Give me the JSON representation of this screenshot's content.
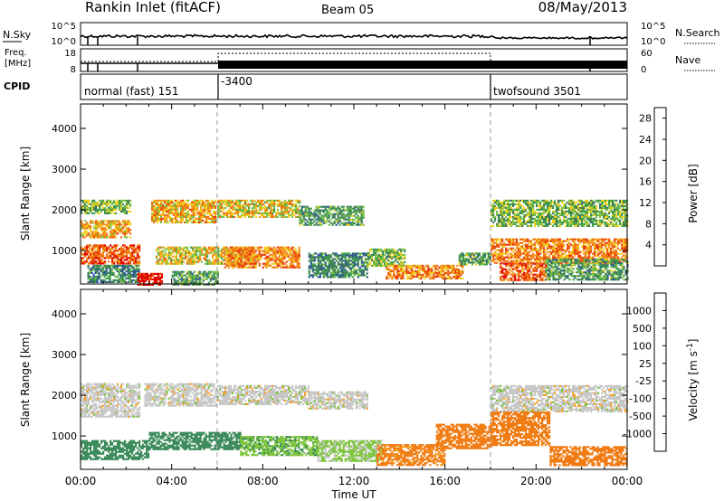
{
  "header": {
    "station": "Rankin Inlet (fitACF)",
    "beam": "Beam 05",
    "date": "08/May/2013"
  },
  "nsky_panel": {
    "left_label": "N.Sky",
    "right_label": "N.Search",
    "left_ticks": [
      "10^5",
      "10^0"
    ],
    "right_ticks": [
      "10^5",
      "10^0"
    ]
  },
  "freq_panel": {
    "left_label_1": "Freq.",
    "left_label_2": "[MHz]",
    "right_label": "Nave",
    "left_ticks": [
      "18",
      "8"
    ],
    "right_ticks": [
      "60",
      "0"
    ]
  },
  "cpid_panel": {
    "label": "CPID",
    "modes": [
      {
        "name": "normal (fast) 151",
        "start_hour": 0
      },
      {
        "name": "-3400",
        "start_hour": 6.0
      },
      {
        "name": "twofsound 3501",
        "start_hour": 18.0
      }
    ]
  },
  "chart_data": [
    {
      "type": "heatmap",
      "title": "",
      "xlabel": "Time UT",
      "ylabel": "Slant Range [km]",
      "x_ticks": [
        "00:00",
        "04:00",
        "08:00",
        "12:00",
        "16:00",
        "20:00",
        "00:00"
      ],
      "xlim_hours": [
        0,
        24
      ],
      "y_ticks": [
        1000,
        2000,
        3000,
        4000
      ],
      "ylim": [
        180,
        4600
      ],
      "colorbar": {
        "label": "Power [dB]",
        "ticks": [
          "4",
          "8",
          "12",
          "16",
          "20",
          "24",
          "28"
        ],
        "range": [
          0,
          30
        ],
        "colors": [
          "#1a1aff",
          "#2a45b8",
          "#2f5d8c",
          "#3f7a5a",
          "#3f9e4a",
          "#7fc24a",
          "#f0d020",
          "#f59a1a",
          "#f06a10",
          "#e83a0a",
          "#e00000"
        ]
      },
      "bands": [
        {
          "t0": 0.0,
          "t1": 2.2,
          "r0": 1900,
          "r1": 2250,
          "value": 14
        },
        {
          "t0": 0.0,
          "t1": 2.2,
          "r0": 1350,
          "r1": 1750,
          "value": 20
        },
        {
          "t0": 0.0,
          "t1": 2.6,
          "r0": 700,
          "r1": 1150,
          "value": 24
        },
        {
          "t0": 0.3,
          "t1": 2.6,
          "r0": 250,
          "r1": 650,
          "value": 10
        },
        {
          "t0": 2.5,
          "t1": 3.6,
          "r0": 180,
          "r1": 450,
          "value": 28
        },
        {
          "t0": 3.1,
          "t1": 5.9,
          "r0": 1700,
          "r1": 2250,
          "value": 20
        },
        {
          "t0": 3.3,
          "t1": 7.6,
          "r0": 700,
          "r1": 1100,
          "value": 18
        },
        {
          "t0": 4.0,
          "t1": 6.0,
          "r0": 180,
          "r1": 500,
          "value": 12
        },
        {
          "t0": 6.0,
          "t1": 9.6,
          "r0": 1850,
          "r1": 2250,
          "value": 18
        },
        {
          "t0": 6.3,
          "t1": 9.6,
          "r0": 600,
          "r1": 1100,
          "value": 22
        },
        {
          "t0": 9.6,
          "t1": 12.4,
          "r0": 1650,
          "r1": 2100,
          "value": 12
        },
        {
          "t0": 10.0,
          "t1": 12.6,
          "r0": 350,
          "r1": 950,
          "value": 10
        },
        {
          "t0": 12.6,
          "t1": 14.2,
          "r0": 650,
          "r1": 1050,
          "value": 14
        },
        {
          "t0": 13.4,
          "t1": 16.8,
          "r0": 300,
          "r1": 650,
          "value": 22
        },
        {
          "t0": 16.6,
          "t1": 18.0,
          "r0": 650,
          "r1": 950,
          "value": 12
        },
        {
          "t0": 18.0,
          "t1": 24.0,
          "r0": 1600,
          "r1": 2250,
          "value": 14
        },
        {
          "t0": 18.0,
          "t1": 24.0,
          "r0": 700,
          "r1": 1300,
          "value": 22
        },
        {
          "t0": 18.4,
          "t1": 20.4,
          "r0": 300,
          "r1": 700,
          "value": 24
        },
        {
          "t0": 20.4,
          "t1": 24.0,
          "r0": 300,
          "r1": 800,
          "value": 12
        }
      ]
    },
    {
      "type": "heatmap",
      "title": "",
      "xlabel": "Time UT",
      "ylabel": "Slant Range [km]",
      "x_ticks": [
        "00:00",
        "04:00",
        "08:00",
        "12:00",
        "16:00",
        "20:00",
        "00:00"
      ],
      "xlim_hours": [
        0,
        24
      ],
      "y_ticks": [
        1000,
        2000,
        3000,
        4000
      ],
      "ylim": [
        180,
        4600
      ],
      "colorbar": {
        "label": "Velocity [m s^-1]",
        "ticks": [
          "1000",
          "500",
          "100",
          "25",
          "-25",
          "-100",
          "-500",
          "-1000"
        ],
        "range": [
          -1000,
          1000
        ],
        "levels": [
          1000,
          500,
          100,
          25,
          -25,
          -100,
          -500,
          -1000
        ],
        "colors": [
          "#1f3fb0",
          "#2f6a8a",
          "#3a8a5a",
          "#7cc43a",
          "#c8c8c8",
          "#f5a020",
          "#f07a10",
          "#e83a0a",
          "#e00000"
        ]
      },
      "bands": [
        {
          "t0": 0.0,
          "t1": 2.6,
          "r0": 1500,
          "r1": 2300,
          "value": 0
        },
        {
          "t0": 0.0,
          "t1": 3.0,
          "r0": 450,
          "r1": 900,
          "value": 200
        },
        {
          "t0": 2.8,
          "t1": 5.9,
          "r0": 1750,
          "r1": 2300,
          "value": 0
        },
        {
          "t0": 3.0,
          "t1": 7.0,
          "r0": 700,
          "r1": 1100,
          "value": 300
        },
        {
          "t0": 6.0,
          "t1": 10.0,
          "r0": 1800,
          "r1": 2250,
          "value": 0
        },
        {
          "t0": 7.0,
          "t1": 10.4,
          "r0": 550,
          "r1": 1000,
          "value": 80
        },
        {
          "t0": 10.0,
          "t1": 12.6,
          "r0": 1700,
          "r1": 2100,
          "value": 0
        },
        {
          "t0": 10.4,
          "t1": 13.2,
          "r0": 400,
          "r1": 900,
          "value": 40
        },
        {
          "t0": 13.0,
          "t1": 16.0,
          "r0": 300,
          "r1": 800,
          "value": -150
        },
        {
          "t0": 15.6,
          "t1": 18.0,
          "r0": 700,
          "r1": 1300,
          "value": -200
        },
        {
          "t0": 18.0,
          "t1": 24.0,
          "r0": 1600,
          "r1": 2250,
          "value": 0
        },
        {
          "t0": 18.0,
          "t1": 20.6,
          "r0": 800,
          "r1": 1600,
          "value": -300
        },
        {
          "t0": 20.6,
          "t1": 24.0,
          "r0": 300,
          "r1": 750,
          "value": -200
        }
      ]
    }
  ]
}
